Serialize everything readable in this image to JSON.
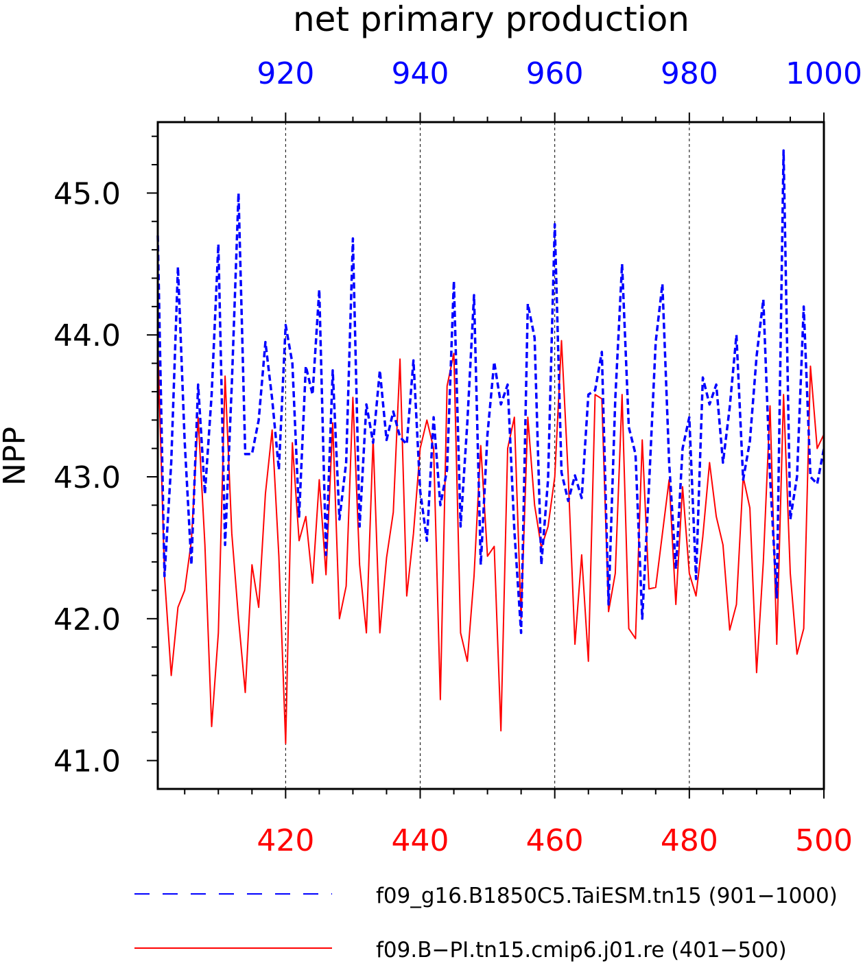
{
  "chart_data": {
    "type": "line",
    "title": "net primary production",
    "ylabel": "NPP",
    "ylim": [
      40.8,
      45.5
    ],
    "y_ticks": [
      "41.0",
      "42.0",
      "43.0",
      "44.0",
      "45.0"
    ],
    "x_bottom": {
      "range": [
        401,
        500
      ],
      "ticks": [
        "420",
        "440",
        "460",
        "480",
        "500"
      ],
      "color": "#ff0000"
    },
    "x_top": {
      "range": [
        901,
        1000
      ],
      "ticks": [
        "920",
        "940",
        "960",
        "980",
        "1000"
      ],
      "color": "#0000ff"
    },
    "grid": "vertical dashed lines at major x ticks",
    "legend_position": "bottom",
    "series": [
      {
        "name": "f09_g16.B1850C5.TaiESM.tn15 (901−1000)",
        "color": "#0000ff",
        "style": "dashed",
        "axis": "top",
        "x_start": 901,
        "values": [
          44.7,
          42.3,
          43.1,
          44.48,
          43.25,
          42.38,
          43.65,
          42.88,
          43.58,
          44.64,
          42.52,
          43.65,
          45.0,
          43.16,
          43.16,
          43.4,
          43.95,
          43.55,
          43.05,
          44.07,
          43.8,
          42.72,
          43.78,
          43.58,
          44.32,
          42.45,
          43.75,
          42.7,
          43.1,
          44.68,
          42.65,
          43.51,
          43.24,
          43.75,
          43.26,
          43.46,
          43.28,
          43.23,
          43.82,
          42.9,
          42.55,
          43.42,
          42.8,
          43.05,
          44.38,
          42.65,
          43.38,
          44.28,
          42.38,
          43.3,
          43.81,
          43.51,
          43.65,
          42.62,
          41.9,
          44.22,
          43.98,
          42.38,
          42.98,
          44.78,
          43.03,
          42.83,
          43.01,
          42.85,
          43.58,
          43.61,
          43.88,
          42.1,
          43.55,
          44.5,
          43.35,
          43.16,
          42.0,
          42.93,
          43.95,
          44.36,
          43.1,
          42.35,
          43.2,
          43.42,
          42.28,
          43.7,
          43.51,
          43.65,
          43.1,
          43.49,
          44.0,
          42.98,
          43.25,
          43.85,
          44.25,
          43.0,
          42.15,
          45.3,
          42.7,
          43.0,
          44.2,
          43.0,
          42.95,
          43.2
        ]
      },
      {
        "name": "f09.B−PI.tn15.cmip6.j01.re (401−500)",
        "color": "#ff0000",
        "style": "solid",
        "axis": "bottom",
        "x_start": 401,
        "values": [
          43.95,
          42.3,
          41.6,
          42.08,
          42.2,
          42.55,
          43.42,
          42.52,
          41.24,
          41.9,
          43.71,
          42.6,
          42.0,
          41.48,
          42.38,
          42.08,
          42.88,
          43.33,
          42.44,
          41.12,
          43.24,
          42.55,
          42.72,
          42.25,
          42.98,
          42.31,
          43.38,
          42.0,
          42.23,
          43.56,
          42.38,
          41.9,
          43.27,
          41.9,
          42.43,
          42.75,
          43.83,
          42.16,
          42.6,
          43.2,
          43.4,
          43.2,
          41.43,
          43.64,
          43.87,
          41.9,
          41.7,
          42.3,
          43.22,
          42.44,
          42.51,
          41.21,
          43.2,
          43.42,
          42.0,
          43.42,
          42.8,
          42.5,
          42.65,
          43.0,
          43.96,
          43.01,
          41.82,
          42.45,
          41.7,
          43.58,
          43.55,
          42.05,
          42.32,
          43.58,
          41.93,
          41.86,
          43.26,
          42.21,
          42.22,
          42.6,
          42.98,
          42.1,
          42.93,
          42.32,
          42.16,
          42.58,
          43.1,
          42.72,
          42.52,
          41.92,
          42.1,
          43.0,
          42.78,
          41.62,
          42.4,
          43.5,
          41.82,
          43.58,
          42.32,
          41.75,
          41.93,
          43.78,
          43.2,
          43.3
        ]
      }
    ]
  }
}
